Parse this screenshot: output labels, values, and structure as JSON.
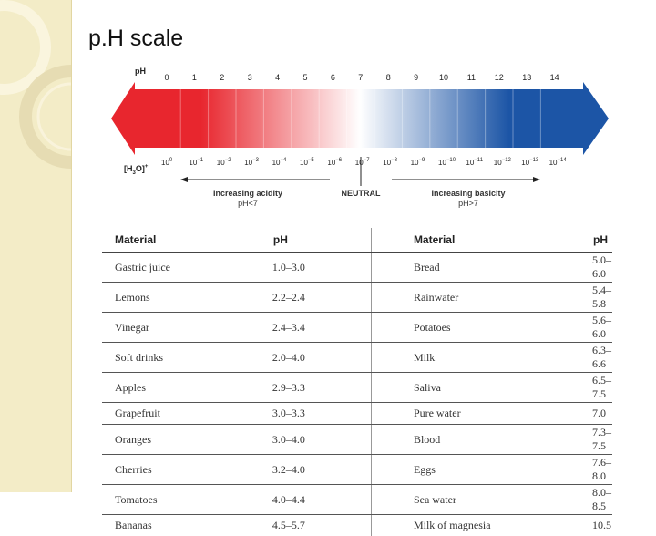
{
  "slide": {
    "title": "p.H scale"
  },
  "figure": {
    "ph_label": "pH",
    "ph_ticks": [
      "0",
      "1",
      "2",
      "3",
      "4",
      "5",
      "6",
      "7",
      "8",
      "9",
      "10",
      "11",
      "12",
      "13",
      "14"
    ],
    "h3o_label_main": "[H",
    "h3o_label_sub": "3",
    "h3o_label_end": "O]",
    "h3o_label_sup": "+",
    "h3o_ticks": [
      {
        "base": "10",
        "exp": "0"
      },
      {
        "base": "10",
        "exp": "−1"
      },
      {
        "base": "10",
        "exp": "−2"
      },
      {
        "base": "10",
        "exp": "−3"
      },
      {
        "base": "10",
        "exp": "−4"
      },
      {
        "base": "10",
        "exp": "−5"
      },
      {
        "base": "10",
        "exp": "−6"
      },
      {
        "base": "10",
        "exp": "−7"
      },
      {
        "base": "10",
        "exp": "−8"
      },
      {
        "base": "10",
        "exp": "−9"
      },
      {
        "base": "10",
        "exp": "−10"
      },
      {
        "base": "10",
        "exp": "−11"
      },
      {
        "base": "10",
        "exp": "−12"
      },
      {
        "base": "10",
        "exp": "−13"
      },
      {
        "base": "10",
        "exp": "−14"
      }
    ],
    "acidity_line1": "Increasing acidity",
    "acidity_line2": "pH<7",
    "neutral": "NEUTRAL",
    "basicity_line1": "Increasing basicity",
    "basicity_line2": "pH>7",
    "colors": {
      "acid": "#e8262e",
      "neutral": "#ffffff",
      "base": "#1c55a6"
    }
  },
  "table": {
    "headers": {
      "material1": "Material",
      "ph1": "pH",
      "material2": "Material",
      "ph2": "pH"
    },
    "rows": [
      {
        "m1": "Gastric juice",
        "p1": "1.0–3.0",
        "m2": "Bread",
        "p2": "5.0–6.0"
      },
      {
        "m1": "Lemons",
        "p1": "2.2–2.4",
        "m2": "Rainwater",
        "p2": "5.4–5.8"
      },
      {
        "m1": "Vinegar",
        "p1": "2.4–3.4",
        "m2": "Potatoes",
        "p2": "5.6–6.0"
      },
      {
        "m1": "Soft drinks",
        "p1": "2.0–4.0",
        "m2": "Milk",
        "p2": "6.3–6.6"
      },
      {
        "m1": "Apples",
        "p1": "2.9–3.3",
        "m2": "Saliva",
        "p2": "6.5–7.5"
      },
      {
        "m1": "Grapefruit",
        "p1": "3.0–3.3",
        "m2": "Pure water",
        "p2": "7.0"
      },
      {
        "m1": "Oranges",
        "p1": "3.0–4.0",
        "m2": "Blood",
        "p2": "7.3–7.5"
      },
      {
        "m1": "Cherries",
        "p1": "3.2–4.0",
        "m2": "Eggs",
        "p2": "7.6–8.0"
      },
      {
        "m1": "Tomatoes",
        "p1": "4.0–4.4",
        "m2": "Sea water",
        "p2": "8.0–8.5"
      },
      {
        "m1": "Bananas",
        "p1": "4.5–5.7",
        "m2": "Milk of magnesia",
        "p2": "10.5"
      }
    ]
  }
}
